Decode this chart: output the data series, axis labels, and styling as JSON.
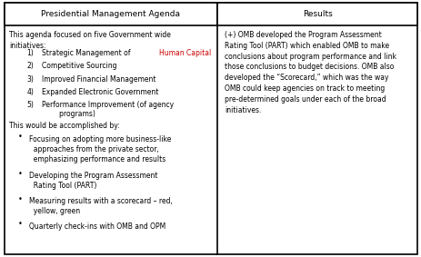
{
  "title_left": "Presidential Management Agenda",
  "title_right": "Results",
  "bg_color": "#ffffff",
  "border_color": "#000000",
  "text_color_black": "#000000",
  "text_color_red": "#cc0000",
  "figsize": [
    4.64,
    2.83
  ],
  "dpi": 100,
  "col_split": 0.515,
  "left_intro": "This agenda focused on five Government wide\ninitiatives:",
  "numbered_items": [
    {
      "normal": "Strategic Management of ",
      "red": "Human Capital"
    },
    {
      "normal": "Competitive Sourcing",
      "red": ""
    },
    {
      "normal": "Improved Financial Management",
      "red": ""
    },
    {
      "normal": "Expanded Electronic Government",
      "red": ""
    },
    {
      "normal": "Performance Improvement (of agency\n        programs)",
      "red": ""
    }
  ],
  "accomplish_header": "This would be accomplished by:",
  "bullet_items": [
    "Focusing on adopting more business-like\n  approaches from the private sector,\n  emphasizing performance and results",
    "Developing the Program Assessment\n  Rating Tool (PART)",
    "Measuring results with a scorecard – red,\n  yellow, green",
    "Quarterly check-ins with OMB and OPM"
  ],
  "right_text": "(+) OMB developed the Program Assessment\nRating Tool (PART) which enabled OMB to make\nconclusions about program performance and link\nthose conclusions to budget decisions. OMB also\ndeveloped the “Scorecard,” which was the way\nOMB could keep agencies on track to meeting\npre-determined goals under each of the broad\ninitiatives."
}
